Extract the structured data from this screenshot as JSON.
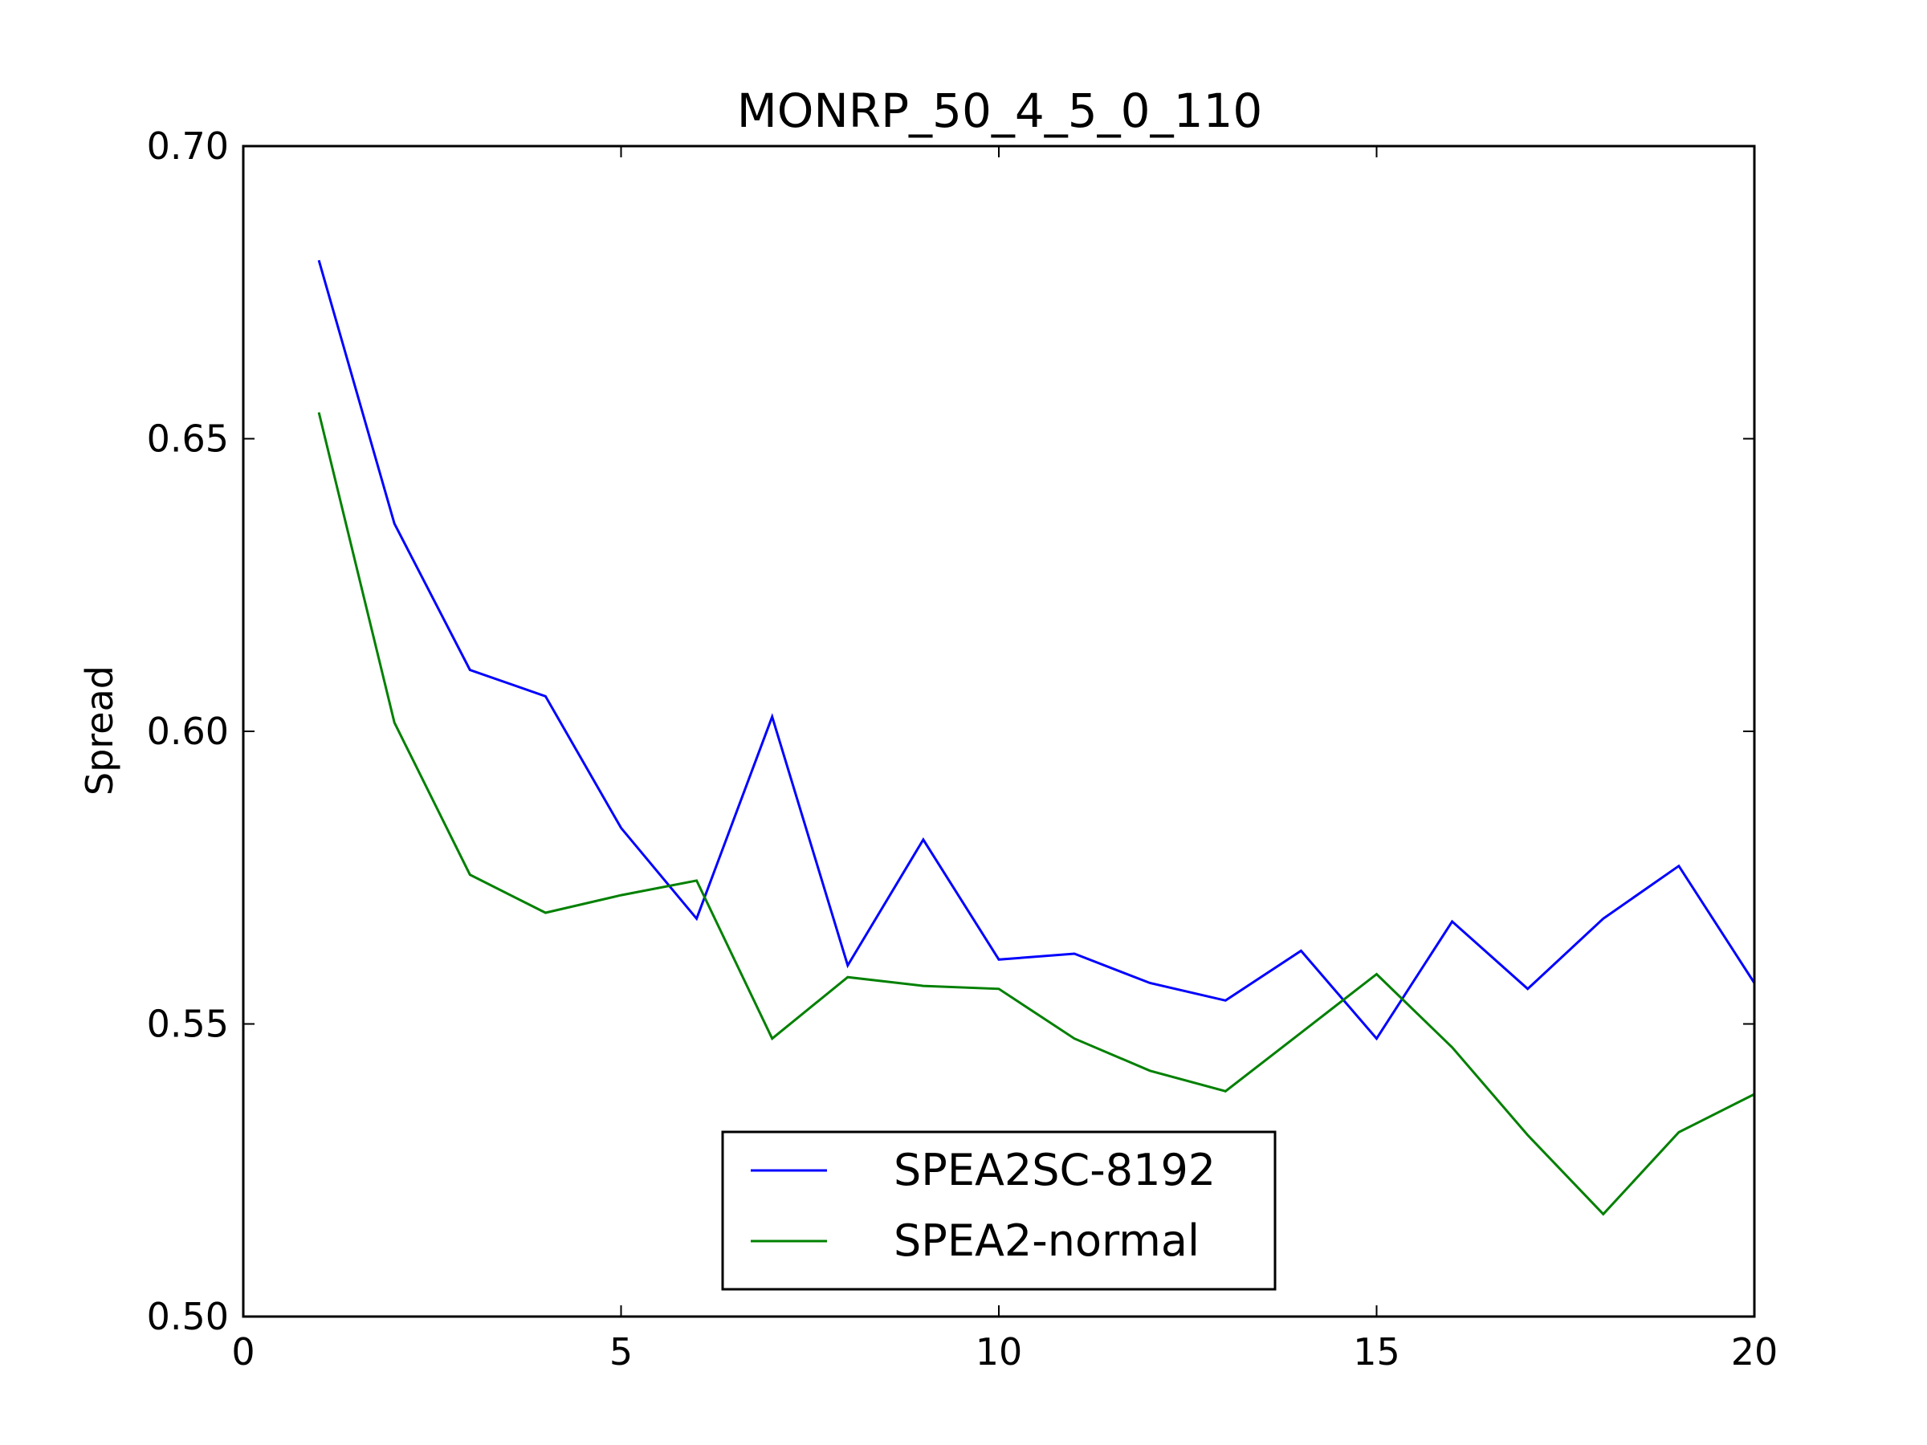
{
  "chart_data": {
    "type": "line",
    "title": "MONRP_50_4_5_0_110",
    "xlabel": "",
    "ylabel": "Spread",
    "xlim": [
      0,
      20
    ],
    "ylim": [
      0.5,
      0.7
    ],
    "x_ticks": [
      0,
      5,
      10,
      15,
      20
    ],
    "x_tick_labels": [
      "0",
      "5",
      "10",
      "15",
      "20"
    ],
    "y_ticks": [
      0.5,
      0.55,
      0.6,
      0.65,
      0.7
    ],
    "y_tick_labels": [
      "0.50",
      "0.55",
      "0.60",
      "0.65",
      "0.70"
    ],
    "grid": false,
    "legend_position": "lower-center",
    "x": [
      1,
      2,
      3,
      4,
      5,
      6,
      7,
      8,
      9,
      10,
      11,
      12,
      13,
      14,
      15,
      16,
      17,
      18,
      19,
      20
    ],
    "series": [
      {
        "name": "SPEA2SC-8192",
        "color": "#0000ff",
        "values": [
          0.6805,
          0.6355,
          0.6105,
          0.606,
          0.5835,
          0.568,
          0.6025,
          0.56,
          0.5815,
          0.561,
          0.562,
          0.557,
          0.554,
          0.5625,
          0.5475,
          0.5675,
          0.556,
          0.568,
          0.577,
          0.557
        ]
      },
      {
        "name": "SPEA2-normal",
        "color": "#008000",
        "values": [
          0.6545,
          0.6015,
          0.5755,
          0.569,
          0.572,
          0.5745,
          0.5475,
          0.558,
          0.5565,
          0.556,
          0.5475,
          0.542,
          0.5385,
          0.5485,
          0.5585,
          0.546,
          0.531,
          0.5175,
          0.5315,
          0.538
        ]
      }
    ]
  }
}
